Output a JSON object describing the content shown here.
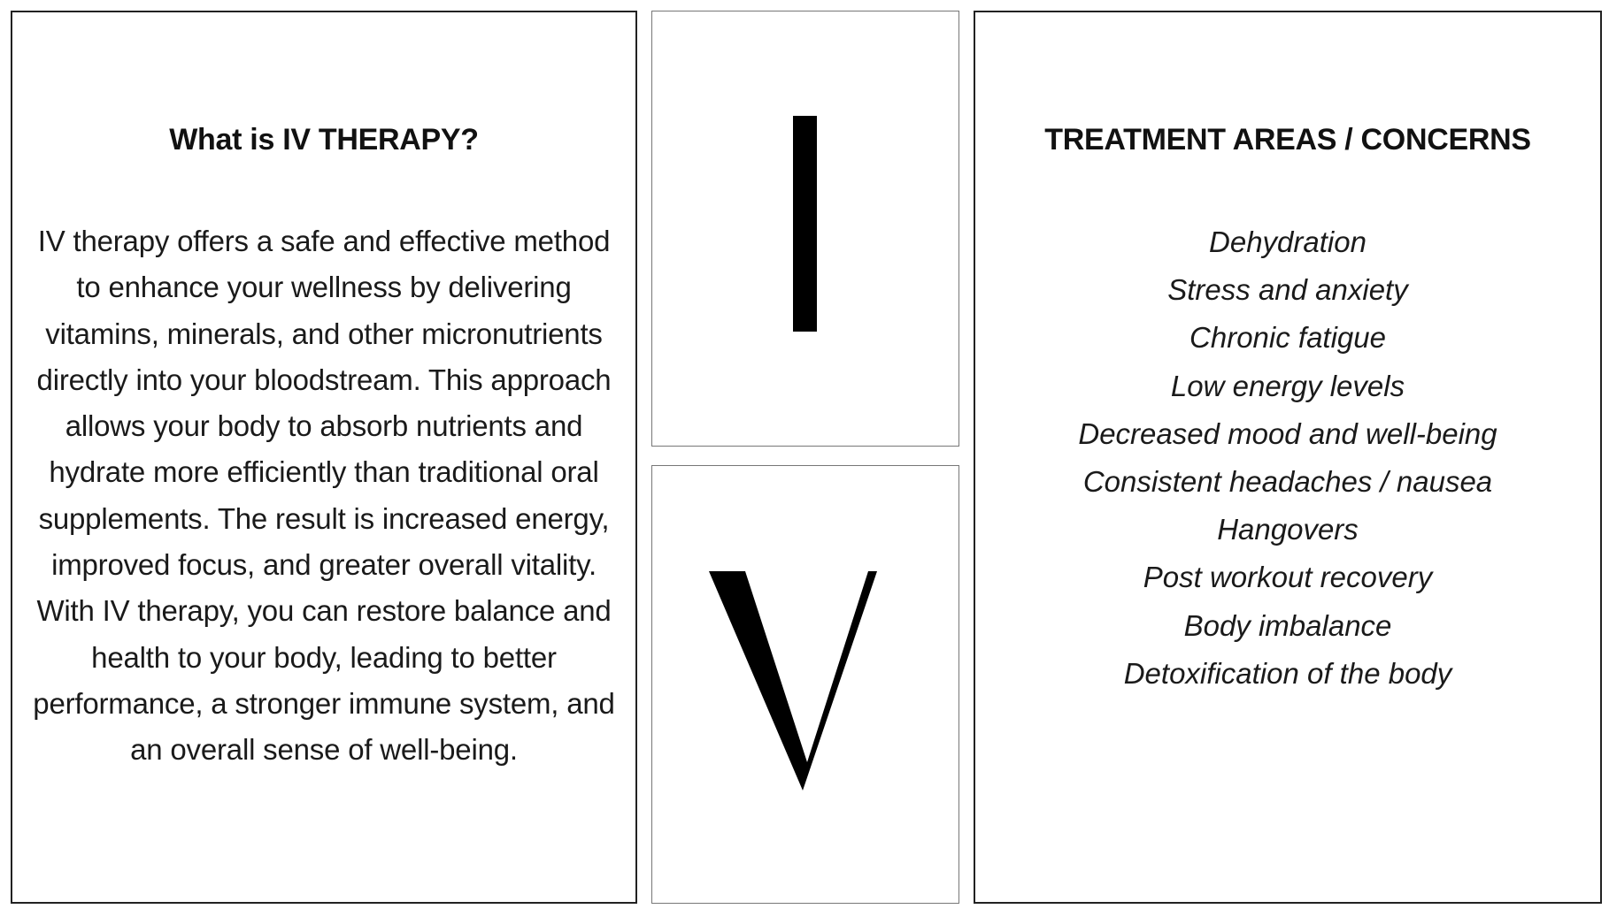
{
  "left_panel": {
    "title": "What is IV THERAPY?",
    "body": "IV therapy offers a safe and effective method to enhance your wellness by delivering vitamins, minerals, and other micronutrients directly into your bloodstream. This approach allows your body to absorb nutrients and hydrate more efficiently than traditional oral supplements. The result is increased energy, improved focus, and greater overall vitality. With IV therapy, you can restore balance and health to your body, leading to better performance, a stronger immune system, and an overall sense of well-being."
  },
  "middle": {
    "letters": [
      "I",
      "V"
    ]
  },
  "right_panel": {
    "title": "TREATMENT AREAS / CONCERNS",
    "items": [
      "Dehydration",
      "Stress and anxiety",
      "Chronic fatigue",
      "Low energy levels",
      "Decreased mood and well-being",
      "Consistent headaches / nausea",
      "Hangovers",
      "Post workout recovery",
      "Body imbalance",
      "Detoxification of the body"
    ]
  }
}
